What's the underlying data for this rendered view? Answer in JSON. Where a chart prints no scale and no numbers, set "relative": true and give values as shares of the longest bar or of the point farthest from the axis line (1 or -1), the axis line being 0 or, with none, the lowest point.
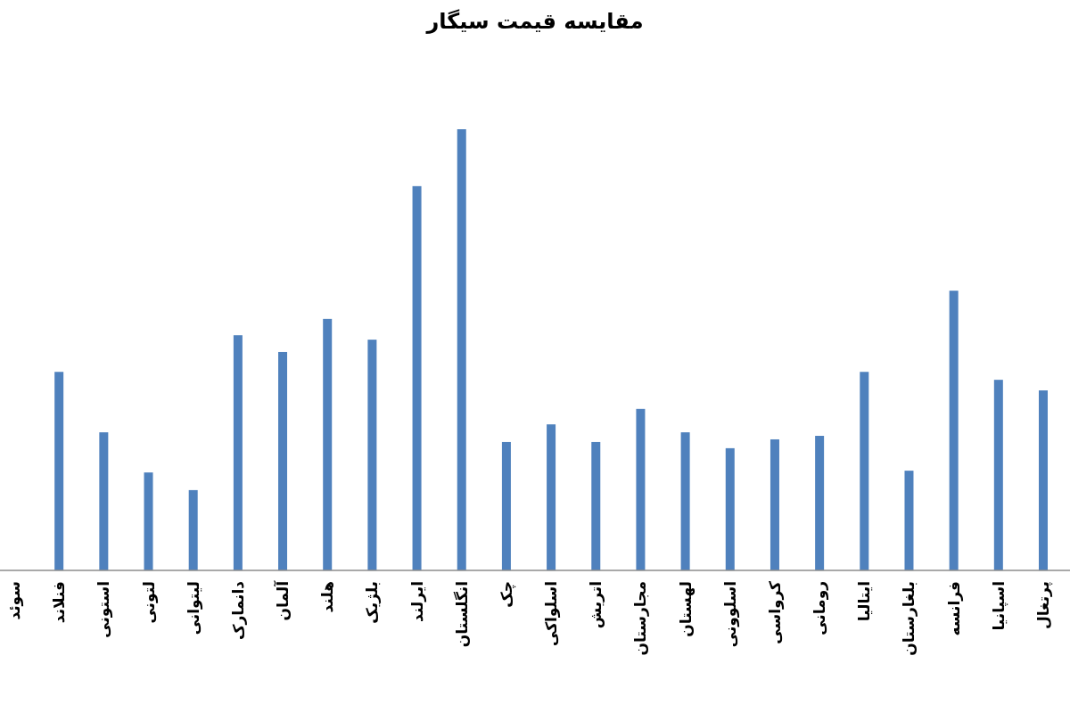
{
  "chart_data": {
    "type": "bar",
    "title": "مقایسه قیمت سیگار",
    "relative": true,
    "color": "#4f81bd",
    "categories": [
      "سوئد",
      "فنلاند",
      "استونی",
      "لتونی",
      "لیتوانی",
      "دانمارک",
      "آلمان",
      "هلند",
      "بلژیک",
      "ایرلند",
      "انگلستان",
      "چک",
      "اسلواکی",
      "اتریش",
      "مجارستان",
      "لهستان",
      "اسلوونی",
      "کرواسی",
      "رومانی",
      "ایتالیا",
      "بلغارستان",
      "فرانسه",
      "اسپانیا",
      "پرتغال"
    ],
    "values": [
      null,
      0.45,
      0.313,
      0.222,
      0.182,
      0.533,
      0.495,
      0.57,
      0.523,
      0.871,
      1,
      0.291,
      0.331,
      0.291,
      0.366,
      0.313,
      0.277,
      0.297,
      0.305,
      0.45,
      0.226,
      0.634,
      0.432,
      0.408
    ]
  }
}
